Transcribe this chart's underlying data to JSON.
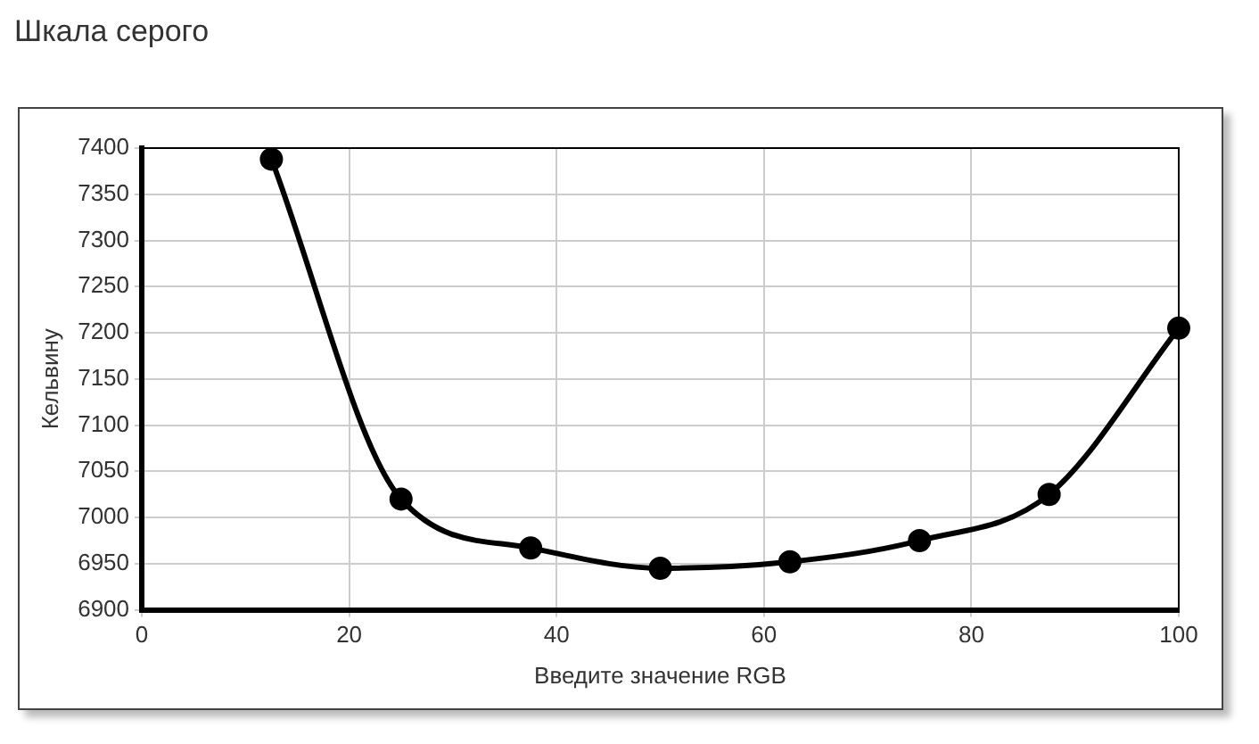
{
  "chart_data": {
    "type": "line",
    "title": "Шкала серого",
    "xlabel": "Введите значение RGB",
    "ylabel": "Кельвину",
    "x": [
      12.5,
      25,
      37.5,
      50,
      62.5,
      75,
      87.5,
      100
    ],
    "series": [
      {
        "color": "#000000",
        "values": [
          7388,
          7020,
          6967,
          6945,
          6952,
          6975,
          7025,
          7205
        ]
      }
    ],
    "xlim": [
      0,
      100
    ],
    "xticks": [
      0,
      20,
      40,
      60,
      80,
      100
    ],
    "ylim": [
      6900,
      7400
    ],
    "yticks": [
      6900,
      6950,
      7000,
      7050,
      7100,
      7150,
      7200,
      7250,
      7300,
      7350,
      7400
    ],
    "grid": true,
    "legend": false,
    "marker": "circle",
    "line_style": "solid"
  }
}
